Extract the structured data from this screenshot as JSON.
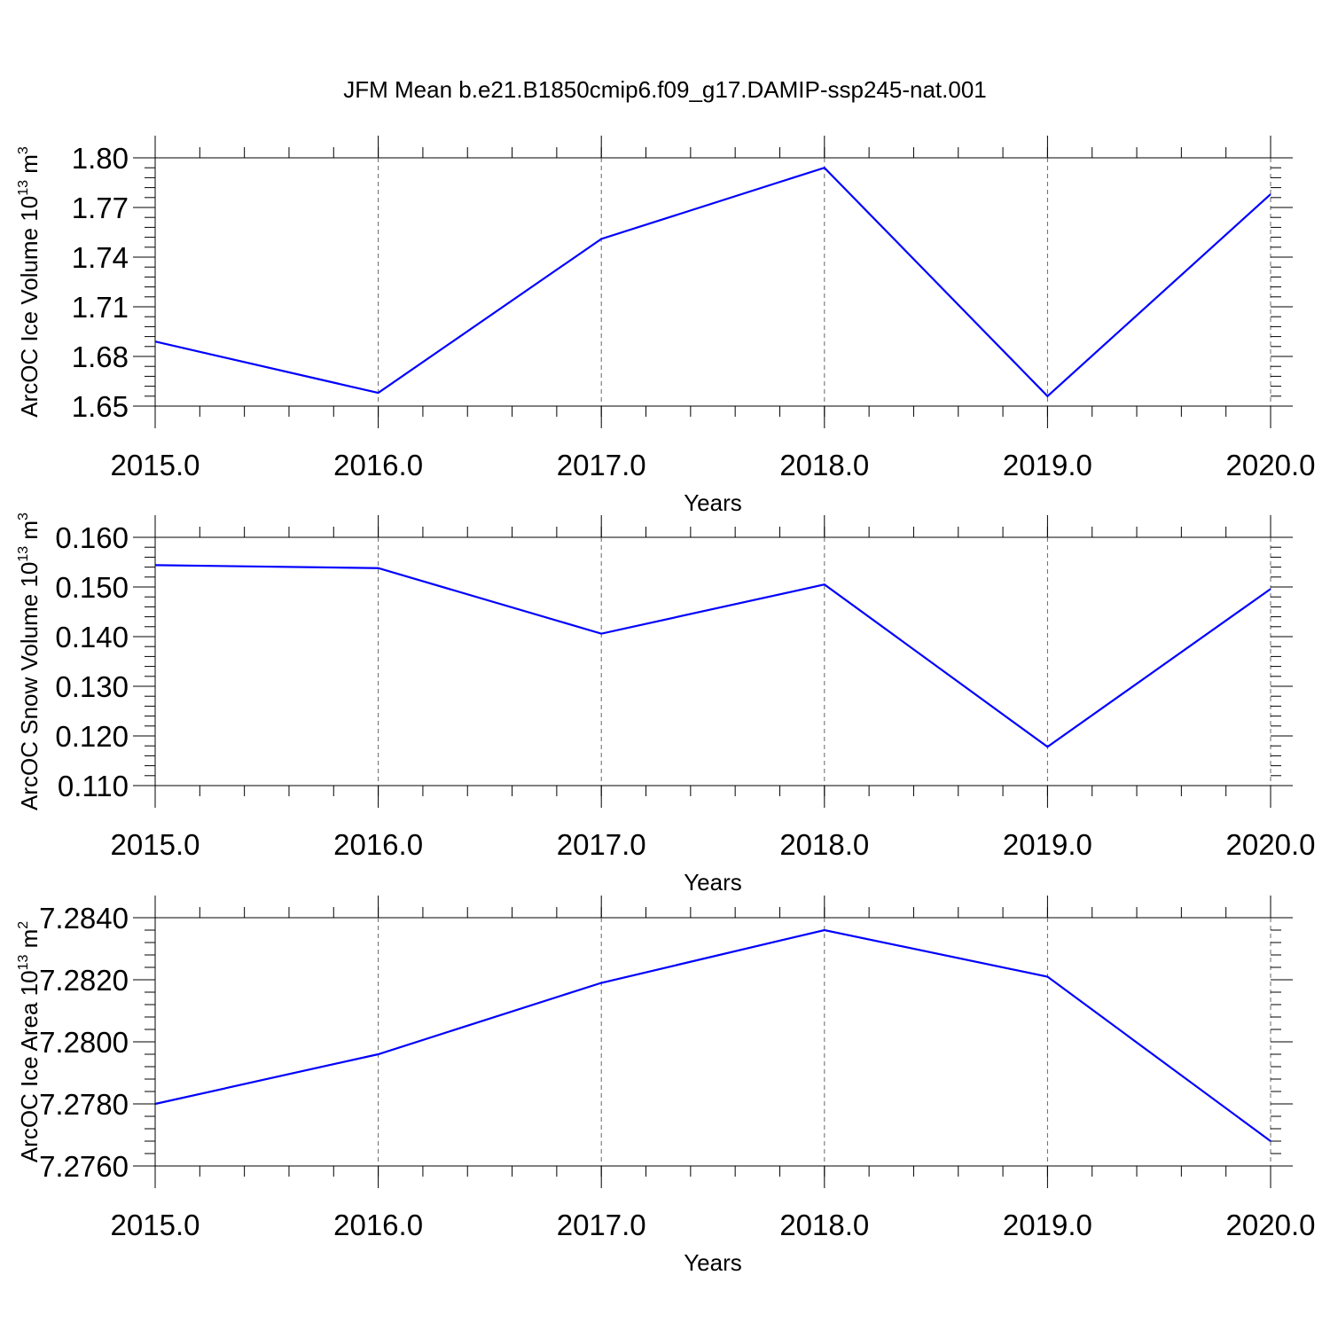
{
  "title": "JFM Mean b.e21.B1850cmip6.f09_g17.DAMIP-ssp245-nat.001",
  "line_color": "#0000ff",
  "chart_data": [
    {
      "type": "line",
      "title": "",
      "xlabel": "Years",
      "ylabel_main": "ArcOC Ice Volume 10",
      "ylabel_exp": "13",
      "ylabel_unit": " m",
      "ylabel_unit_exp": "3",
      "x": [
        2015,
        2016,
        2017,
        2018,
        2019,
        2020
      ],
      "x_tick_labels": [
        "2015.0",
        "2016.0",
        "2017.0",
        "2018.0",
        "2019.0",
        "2020.0"
      ],
      "xlim": [
        2015,
        2020
      ],
      "ylim": [
        1.65,
        1.8
      ],
      "y_ticks": [
        1.65,
        1.68,
        1.71,
        1.74,
        1.77,
        1.8
      ],
      "y_tick_labels": [
        "1.65",
        "1.68",
        "1.71",
        "1.74",
        "1.77",
        "1.80"
      ],
      "series": [
        {
          "values": [
            1.689,
            1.658,
            1.751,
            1.794,
            1.656,
            1.778
          ]
        }
      ],
      "grid": "vertical dashed"
    },
    {
      "type": "line",
      "title": "",
      "xlabel": "Years",
      "ylabel_main": "ArcOC Snow Volume 10",
      "ylabel_exp": "13",
      "ylabel_unit": " m",
      "ylabel_unit_exp": "3",
      "x": [
        2015,
        2016,
        2017,
        2018,
        2019,
        2020
      ],
      "x_tick_labels": [
        "2015.0",
        "2016.0",
        "2017.0",
        "2018.0",
        "2019.0",
        "2020.0"
      ],
      "xlim": [
        2015,
        2020
      ],
      "ylim": [
        0.11,
        0.16
      ],
      "y_ticks": [
        0.11,
        0.12,
        0.13,
        0.14,
        0.15,
        0.16
      ],
      "y_tick_labels": [
        "0.110",
        "0.120",
        "0.130",
        "0.140",
        "0.150",
        "0.160"
      ],
      "series": [
        {
          "values": [
            0.1544,
            0.1538,
            0.1406,
            0.1505,
            0.1178,
            0.1496
          ]
        }
      ],
      "grid": "vertical dashed"
    },
    {
      "type": "line",
      "title": "",
      "xlabel": "Years",
      "ylabel_main": "ArcOC Ice Area 10",
      "ylabel_exp": "13",
      "ylabel_unit": " m",
      "ylabel_unit_exp": "2",
      "x": [
        2015,
        2016,
        2017,
        2018,
        2019,
        2020
      ],
      "x_tick_labels": [
        "2015.0",
        "2016.0",
        "2017.0",
        "2018.0",
        "2019.0",
        "2020.0"
      ],
      "xlim": [
        2015,
        2020
      ],
      "ylim": [
        7.276,
        7.284
      ],
      "y_ticks": [
        7.276,
        7.278,
        7.28,
        7.282,
        7.284
      ],
      "y_tick_labels": [
        "7.2760",
        "7.2780",
        "7.2800",
        "7.2820",
        "7.2840"
      ],
      "series": [
        {
          "values": [
            7.278,
            7.2796,
            7.2819,
            7.2836,
            7.2821,
            7.2768
          ]
        }
      ],
      "grid": "vertical dashed"
    }
  ]
}
